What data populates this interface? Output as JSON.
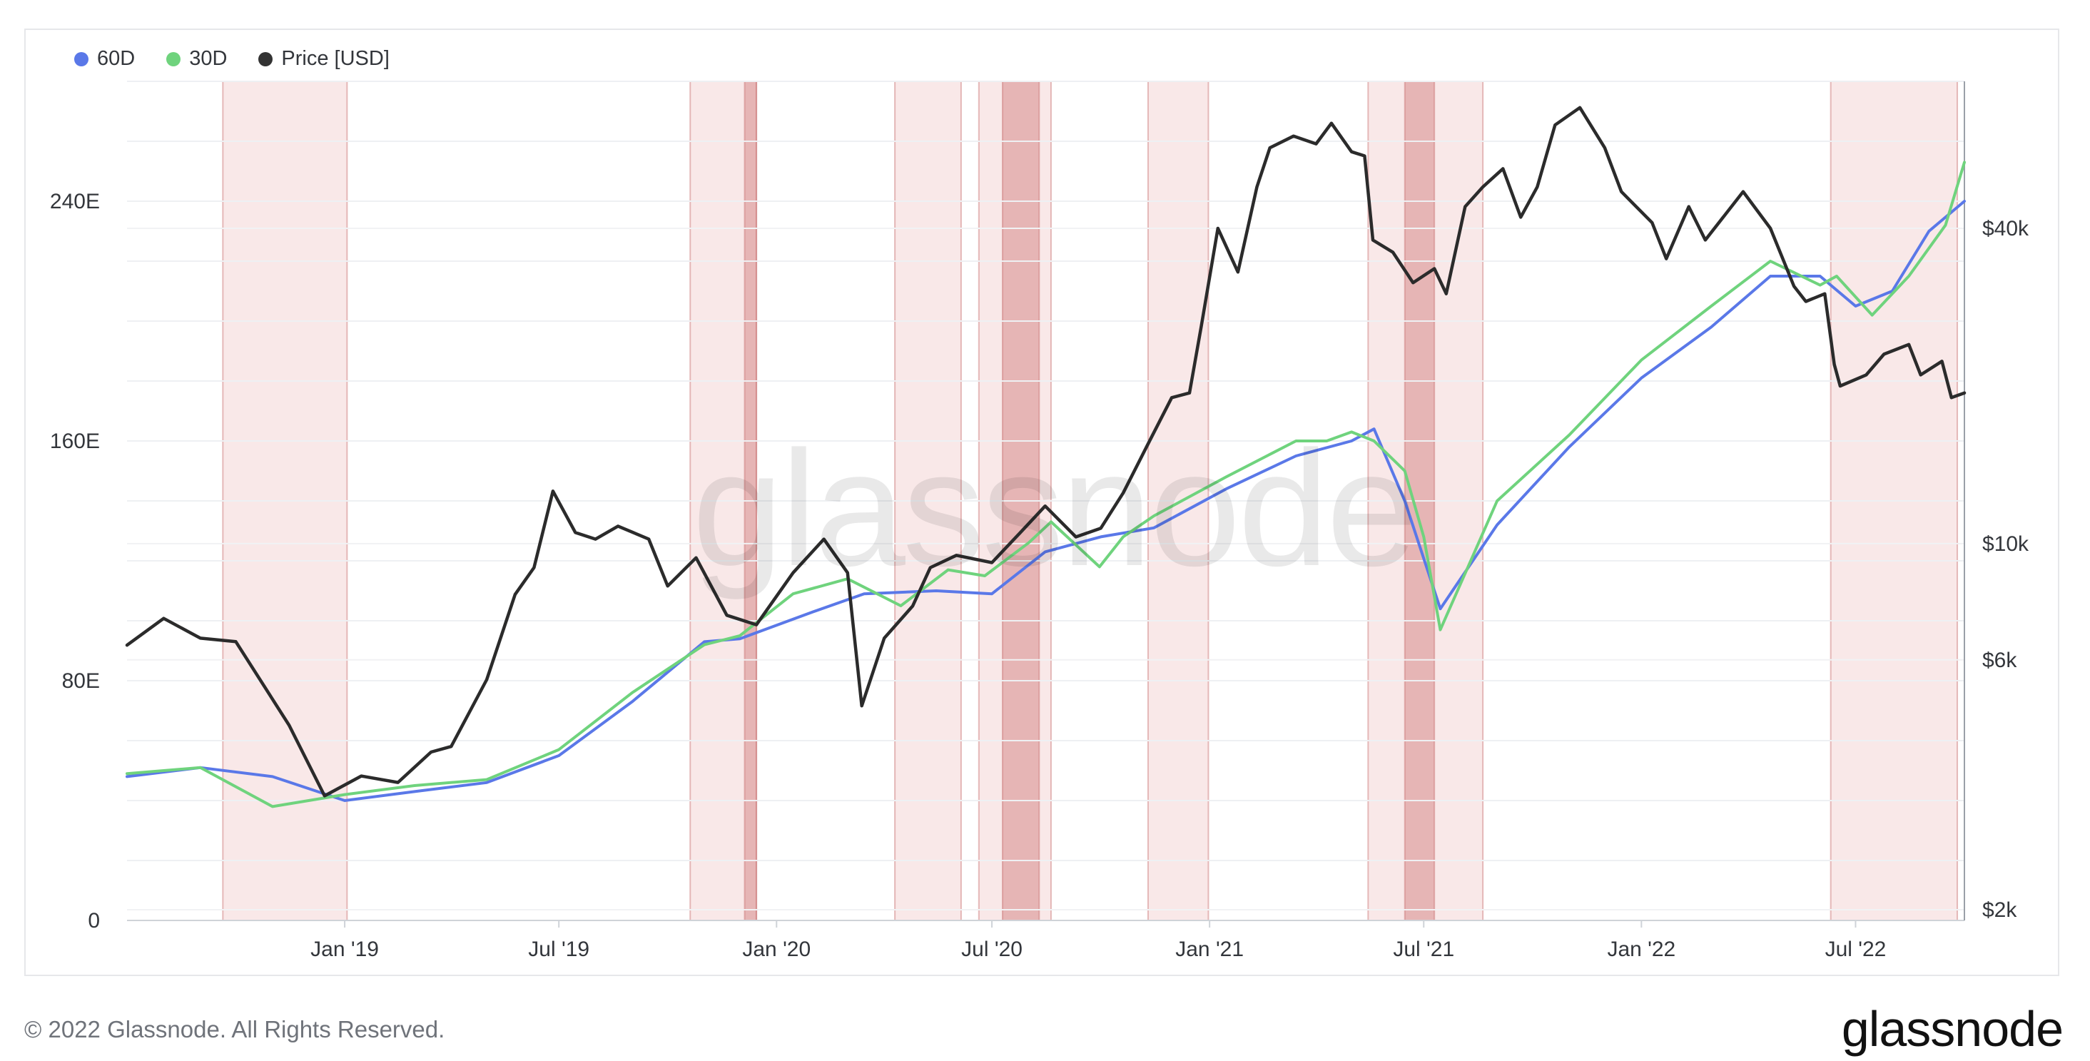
{
  "legend": [
    {
      "label": "60D",
      "color": "#5a78e8"
    },
    {
      "label": "30D",
      "color": "#6fd37d"
    },
    {
      "label": "Price [USD]",
      "color": "#333333"
    }
  ],
  "watermark": "glassnode",
  "footer": {
    "copyright": "© 2022 Glassnode. All Rights Reserved.",
    "brand": "glassnode"
  },
  "chart_data": {
    "type": "line",
    "x_ticks": [
      "Jan '19",
      "Jul '19",
      "Jan '20",
      "Jul '20",
      "Jan '21",
      "Jul '21",
      "Jan '22",
      "Jul '22"
    ],
    "y_left": {
      "ticks": [
        "0",
        "80E",
        "160E",
        "240E"
      ],
      "range": [
        0,
        280
      ]
    },
    "y_right": {
      "ticks": [
        "$2k",
        "$6k",
        "$10k",
        "$40k"
      ],
      "scale": "log"
    },
    "grid": true,
    "legend_position": "top-left",
    "shaded_periods": [
      {
        "start": "2018-09-20",
        "end": "2019-01-03",
        "strength": "light"
      },
      {
        "start": "2019-10-20",
        "end": "2019-12-15",
        "strength": "light"
      },
      {
        "start": "2019-12-05",
        "end": "2019-12-15",
        "strength": "strong"
      },
      {
        "start": "2020-04-10",
        "end": "2020-06-05",
        "strength": "light"
      },
      {
        "start": "2020-06-20",
        "end": "2020-08-20",
        "strength": "light"
      },
      {
        "start": "2020-07-10",
        "end": "2020-08-10",
        "strength": "strong"
      },
      {
        "start": "2020-11-10",
        "end": "2020-12-31",
        "strength": "light"
      },
      {
        "start": "2021-05-15",
        "end": "2021-08-20",
        "strength": "light"
      },
      {
        "start": "2021-06-15",
        "end": "2021-07-10",
        "strength": "strong"
      },
      {
        "start": "2022-06-10",
        "end": "2022-09-25",
        "strength": "light"
      }
    ],
    "series": [
      {
        "name": "60D",
        "axis": "left",
        "color": "#5a78e8",
        "x": [
          "2018-07-01",
          "2018-09-01",
          "2018-11-01",
          "2019-01-01",
          "2019-03-01",
          "2019-05-01",
          "2019-07-01",
          "2019-09-01",
          "2019-11-01",
          "2019-12-01",
          "2020-02-01",
          "2020-03-15",
          "2020-05-15",
          "2020-07-01",
          "2020-08-15",
          "2020-10-01",
          "2020-11-15",
          "2021-01-15",
          "2021-03-15",
          "2021-05-01",
          "2021-05-20",
          "2021-06-15",
          "2021-07-15",
          "2021-09-01",
          "2021-11-01",
          "2022-01-01",
          "2022-03-01",
          "2022-04-20",
          "2022-06-01",
          "2022-07-01",
          "2022-08-01",
          "2022-09-01",
          "2022-10-01"
        ],
        "y": [
          48,
          51,
          48,
          40,
          43,
          46,
          55,
          73,
          93,
          94,
          103,
          109,
          110,
          109,
          123,
          128,
          131,
          144,
          155,
          160,
          164,
          140,
          104,
          132,
          158,
          181,
          198,
          215,
          215,
          205,
          210,
          230,
          240
        ]
      },
      {
        "name": "30D",
        "axis": "left",
        "color": "#6fd37d",
        "x": [
          "2018-07-01",
          "2018-09-01",
          "2018-11-01",
          "2019-01-01",
          "2019-03-01",
          "2019-05-01",
          "2019-07-01",
          "2019-09-01",
          "2019-11-01",
          "2019-12-01",
          "2020-01-15",
          "2020-03-01",
          "2020-04-15",
          "2020-05-25",
          "2020-06-25",
          "2020-08-01",
          "2020-08-20",
          "2020-09-30",
          "2020-10-20",
          "2020-11-15",
          "2021-01-15",
          "2021-03-15",
          "2021-04-10",
          "2021-05-01",
          "2021-05-20",
          "2021-06-15",
          "2021-07-01",
          "2021-07-15",
          "2021-09-01",
          "2021-11-01",
          "2022-01-01",
          "2022-03-01",
          "2022-04-20",
          "2022-06-01",
          "2022-06-15",
          "2022-07-15",
          "2022-08-15",
          "2022-09-15",
          "2022-10-01"
        ],
        "y": [
          49,
          51,
          38,
          42,
          45,
          47,
          57,
          76,
          92,
          95,
          109,
          114,
          105,
          117,
          115,
          126,
          133,
          118,
          128,
          135,
          148,
          160,
          160,
          163,
          160,
          150,
          128,
          97,
          140,
          162,
          187,
          205,
          220,
          212,
          215,
          202,
          215,
          232,
          253
        ]
      },
      {
        "name": "Price [USD]",
        "axis": "right",
        "color": "#2b2b2b",
        "x": [
          "2018-07-01",
          "2018-08-01",
          "2018-09-01",
          "2018-10-01",
          "2018-11-15",
          "2018-12-15",
          "2019-01-15",
          "2019-02-15",
          "2019-03-15",
          "2019-04-01",
          "2019-05-01",
          "2019-05-25",
          "2019-06-10",
          "2019-06-26",
          "2019-07-15",
          "2019-08-01",
          "2019-08-20",
          "2019-09-15",
          "2019-10-01",
          "2019-10-25",
          "2019-11-20",
          "2019-12-15",
          "2020-01-15",
          "2020-02-10",
          "2020-03-01",
          "2020-03-13",
          "2020-04-01",
          "2020-04-25",
          "2020-05-10",
          "2020-06-01",
          "2020-07-01",
          "2020-07-25",
          "2020-08-15",
          "2020-09-10",
          "2020-10-01",
          "2020-10-20",
          "2020-11-10",
          "2020-11-30",
          "2020-12-15",
          "2020-12-25",
          "2021-01-08",
          "2021-01-25",
          "2021-02-10",
          "2021-02-21",
          "2021-03-13",
          "2021-04-01",
          "2021-04-14",
          "2021-05-01",
          "2021-05-12",
          "2021-05-19",
          "2021-06-05",
          "2021-06-22",
          "2021-07-10",
          "2021-07-20",
          "2021-08-05",
          "2021-08-20",
          "2021-09-06",
          "2021-09-21",
          "2021-10-05",
          "2021-10-20",
          "2021-11-10",
          "2021-12-01",
          "2021-12-15",
          "2022-01-10",
          "2022-01-22",
          "2022-02-10",
          "2022-02-24",
          "2022-03-28",
          "2022-04-20",
          "2022-05-10",
          "2022-05-20",
          "2022-06-05",
          "2022-06-13",
          "2022-06-18",
          "2022-07-10",
          "2022-07-25",
          "2022-08-15",
          "2022-08-25",
          "2022-09-12",
          "2022-09-20",
          "2022-10-01"
        ],
        "y": [
          6400,
          7200,
          6600,
          6500,
          4500,
          3300,
          3600,
          3500,
          4000,
          4100,
          5500,
          8000,
          9000,
          12600,
          10500,
          10200,
          10800,
          10200,
          8300,
          9400,
          7300,
          7000,
          8800,
          10200,
          8800,
          4900,
          6600,
          7600,
          9000,
          9500,
          9200,
          10500,
          11800,
          10300,
          10700,
          12500,
          15500,
          19000,
          19400,
          26000,
          40000,
          33000,
          48000,
          57000,
          60000,
          58000,
          63500,
          56000,
          55000,
          38000,
          36000,
          31500,
          33500,
          30000,
          44000,
          48000,
          52000,
          42000,
          48000,
          63000,
          68000,
          57000,
          47000,
          41000,
          35000,
          44000,
          38000,
          47000,
          40000,
          31000,
          29000,
          30000,
          22000,
          20000,
          21000,
          23000,
          24000,
          21000,
          22300,
          19000,
          19400
        ]
      }
    ]
  }
}
